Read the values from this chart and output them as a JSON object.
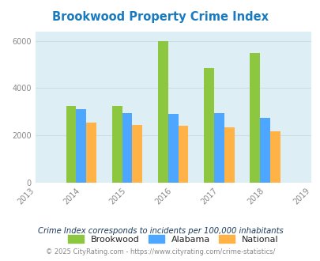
{
  "title": "Brookwood Property Crime Index",
  "years": [
    2013,
    2014,
    2015,
    2016,
    2017,
    2018,
    2019
  ],
  "data_years": [
    2014,
    2015,
    2016,
    2017,
    2018
  ],
  "brookwood": [
    3250,
    3250,
    5975,
    4850,
    5500
  ],
  "alabama": [
    3100,
    2950,
    2900,
    2950,
    2750
  ],
  "national": [
    2550,
    2450,
    2400,
    2325,
    2175
  ],
  "colors": {
    "brookwood": "#8dc63f",
    "alabama": "#4da6ff",
    "national": "#ffb347"
  },
  "ylim": [
    0,
    6400
  ],
  "yticks": [
    0,
    2000,
    4000,
    6000
  ],
  "bg_color": "#ddeef5",
  "title_color": "#1a7abf",
  "title_fontsize": 10.5,
  "legend_labels": [
    "Brookwood",
    "Alabama",
    "National"
  ],
  "note": "Crime Index corresponds to incidents per 100,000 inhabitants",
  "copyright": "© 2025 CityRating.com - https://www.cityrating.com/crime-statistics/",
  "bar_width": 0.22,
  "grid_color": "#ccdde8",
  "tick_color": "#888888",
  "note_color": "#1a3a5c",
  "copyright_color": "#888888"
}
